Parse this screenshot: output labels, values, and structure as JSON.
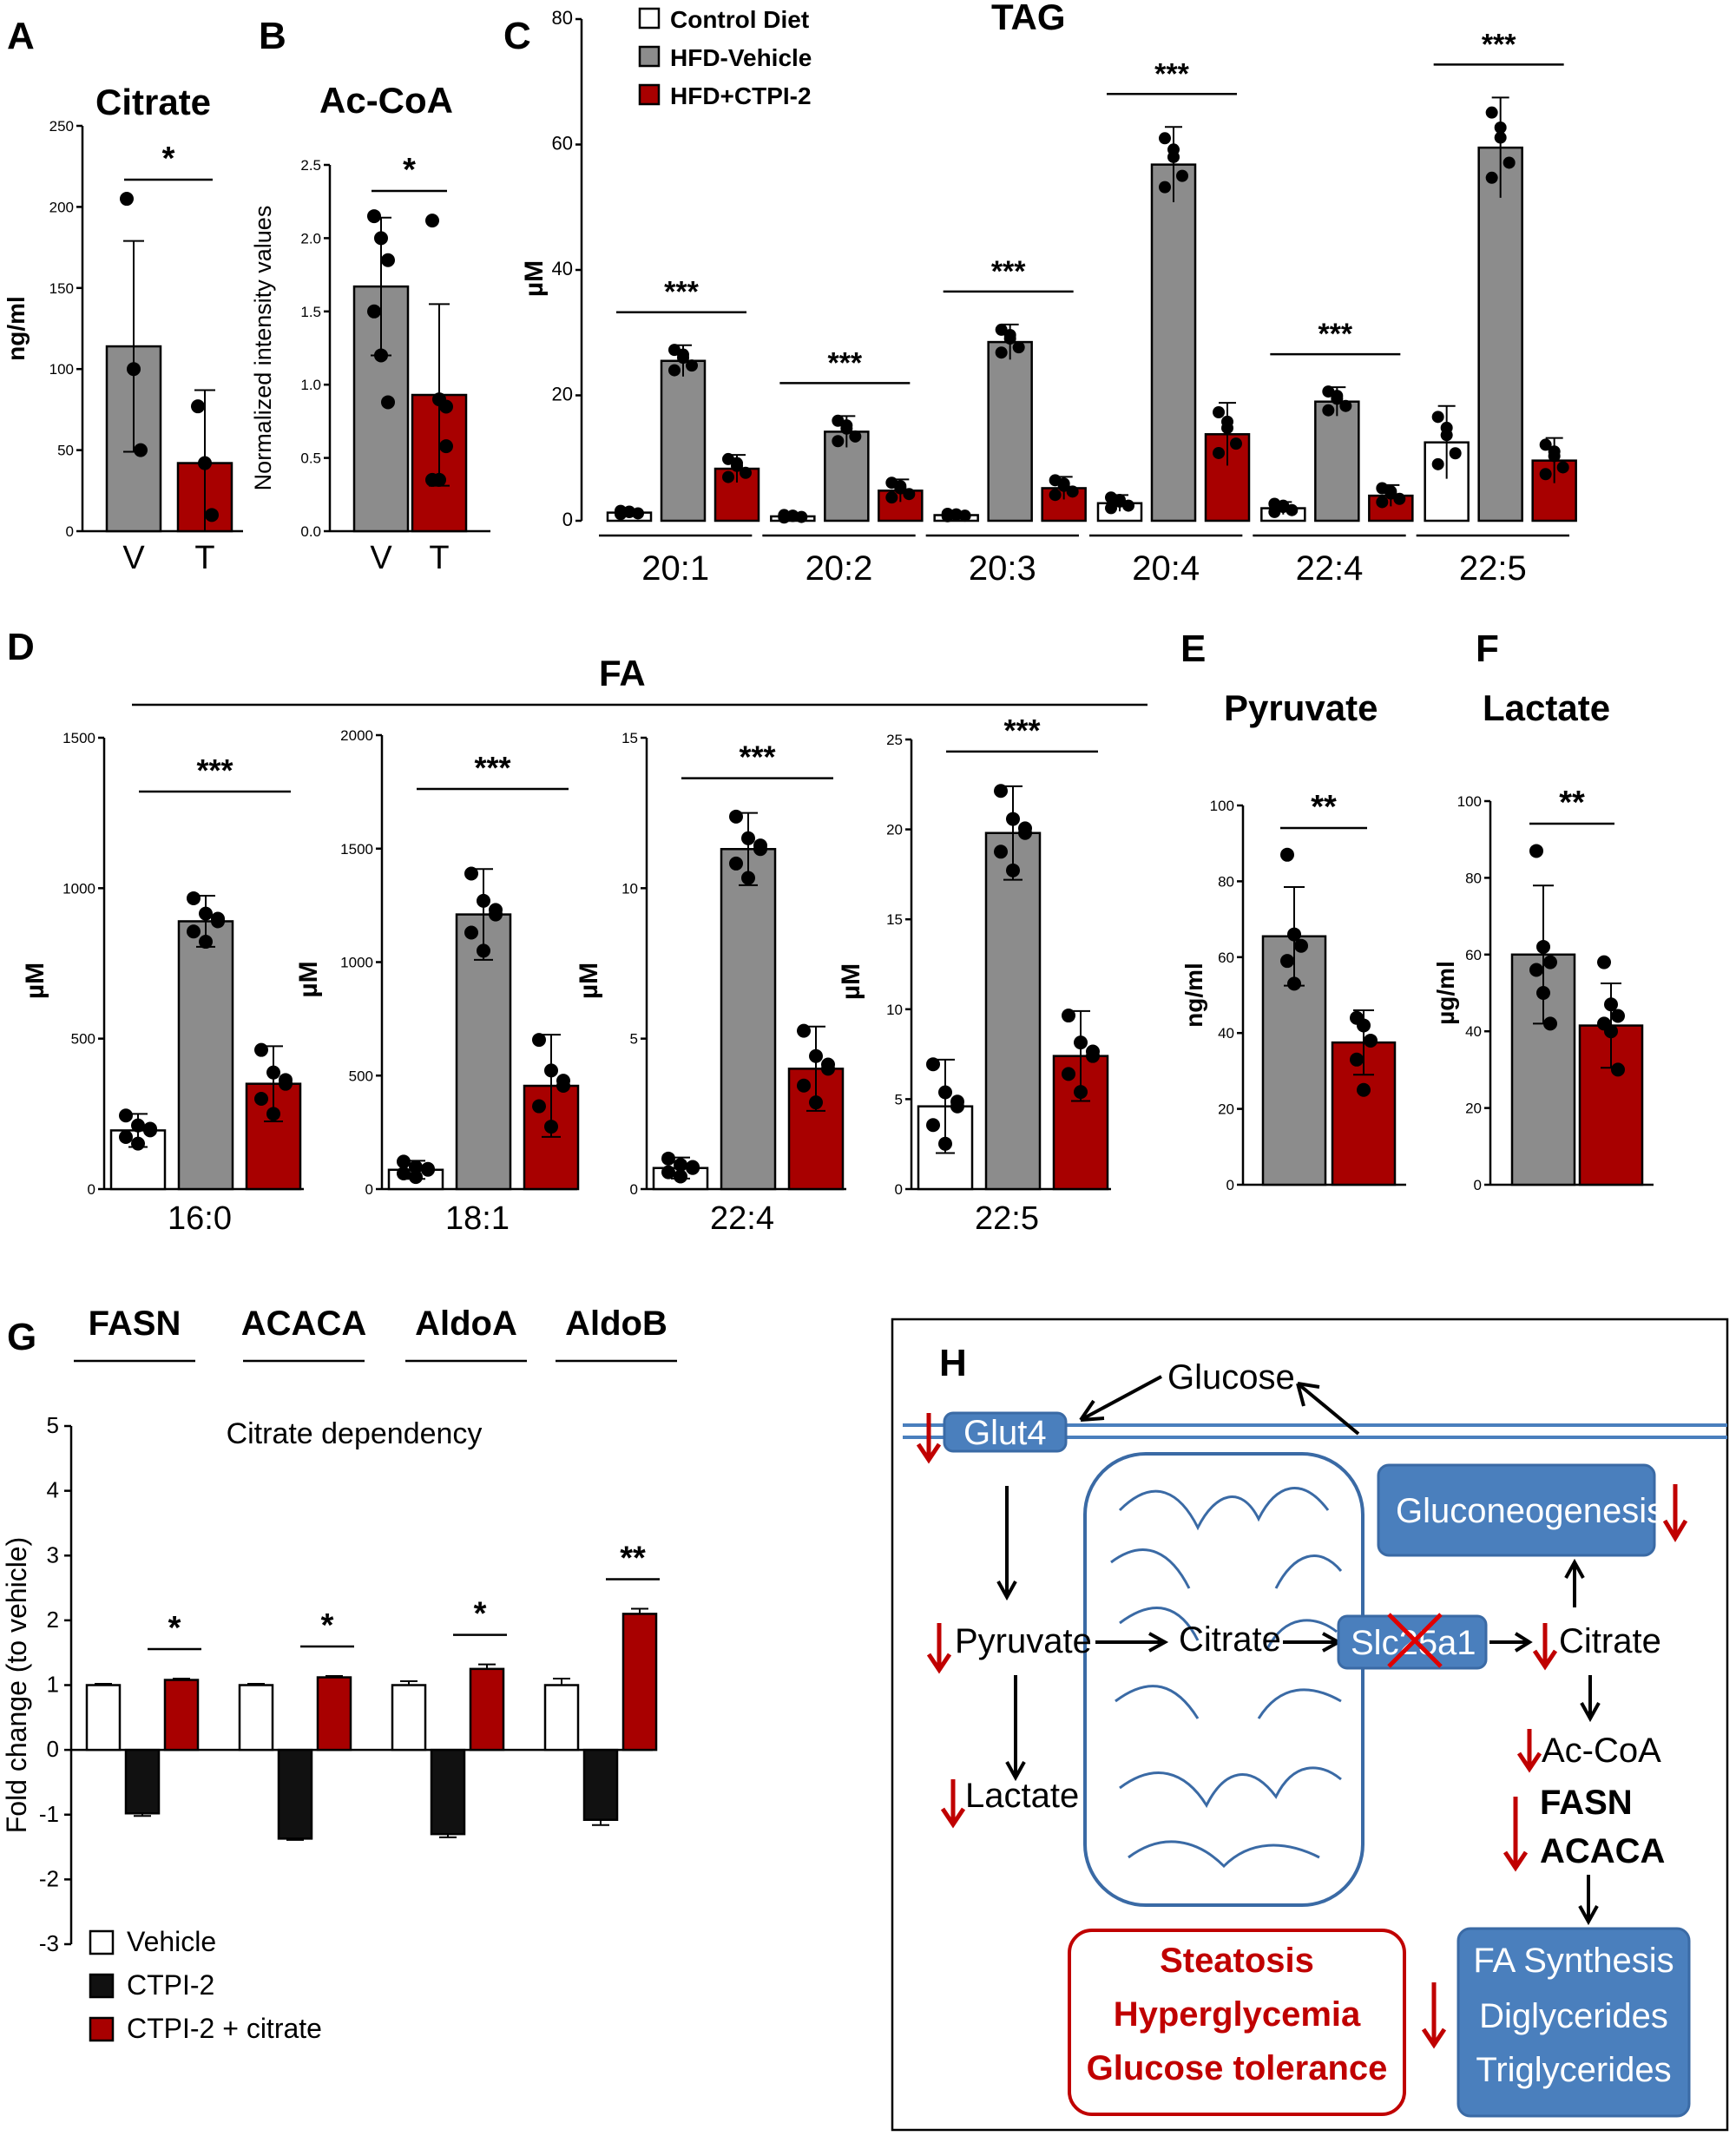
{
  "colors": {
    "control": "#ffffff",
    "vehicle": "#8c8c8c",
    "ctpi": "#a80000",
    "black": "#111111",
    "blue_box": "#4a7fbd",
    "membrane": "#3a6aa5",
    "red": "#c00000"
  },
  "panels": {
    "A": {
      "label": "A",
      "title": "Citrate"
    },
    "B": {
      "label": "B",
      "title": "Ac-CoA"
    },
    "C": {
      "label": "C",
      "title": "TAG"
    },
    "D": {
      "label": "D",
      "title": "FA"
    },
    "E": {
      "label": "E",
      "title": "Pyruvate"
    },
    "F": {
      "label": "F",
      "title": "Lactate"
    },
    "G": {
      "label": "G",
      "title": "Citrate dependency",
      "gene_headers": [
        "FASN",
        "ACACA",
        "AldoA",
        "AldoB"
      ]
    },
    "H": {
      "label": "H"
    }
  },
  "legend_c": [
    "Control Diet",
    "HFD-Vehicle",
    "HFD+CTPI-2"
  ],
  "legend_g": [
    "Vehicle",
    "CTPI-2",
    "CTPI-2 + citrate"
  ],
  "chart_data": [
    {
      "id": "A",
      "type": "bar",
      "title": "Citrate",
      "ylabel": "ng/ml",
      "ylim": [
        0,
        250
      ],
      "yticks": [
        0,
        50,
        100,
        150,
        200,
        250
      ],
      "categories": [
        "V",
        "T"
      ],
      "values": [
        114,
        42
      ],
      "errors": [
        65,
        45
      ],
      "points": [
        [
          205,
          100,
          50
        ],
        [
          77,
          42,
          10
        ]
      ],
      "significance": "*"
    },
    {
      "id": "B",
      "type": "bar",
      "title": "Ac-CoA",
      "ylabel": "Normalized intensity values",
      "ylim": [
        0,
        2.5
      ],
      "yticks": [
        "0.0",
        "0.5",
        "1.0",
        "1.5",
        "2.0",
        "2.5"
      ],
      "categories": [
        "V",
        "T"
      ],
      "values": [
        1.67,
        0.93
      ],
      "errors": [
        0.47,
        0.62
      ],
      "points": [
        [
          2.15,
          2.0,
          1.85,
          1.5,
          1.2,
          0.88
        ],
        [
          2.12,
          0.9,
          0.58,
          0.35,
          0.35,
          0.85
        ]
      ],
      "significance": "*"
    },
    {
      "id": "C",
      "type": "bar",
      "title": "TAG",
      "ylabel": "µM",
      "ylim": [
        0,
        80
      ],
      "yticks": [
        0,
        20,
        40,
        60,
        80
      ],
      "categories": [
        "20:1",
        "20:2",
        "20:3",
        "20:4",
        "22:4",
        "22:5"
      ],
      "series": [
        {
          "name": "Control Diet",
          "values": [
            1.3,
            0.7,
            0.9,
            2.8,
            2.0,
            12.5
          ],
          "errors": [
            0.4,
            0.3,
            0.3,
            1.3,
            1.0,
            5.8
          ]
        },
        {
          "name": "HFD-Vehicle",
          "values": [
            25.5,
            14.2,
            28.5,
            56.8,
            19.0,
            59.5
          ],
          "errors": [
            2.5,
            2.5,
            2.8,
            6.0,
            2.3,
            8.0
          ]
        },
        {
          "name": "HFD+CTPI-2",
          "values": [
            8.3,
            4.8,
            5.2,
            13.8,
            4.0,
            9.6
          ],
          "errors": [
            2.2,
            1.8,
            1.8,
            5.0,
            1.7,
            3.6
          ]
        }
      ],
      "significance": [
        "***",
        "***",
        "***",
        "***",
        "***",
        "***"
      ]
    },
    {
      "id": "D1",
      "type": "bar",
      "ylabel": "µM",
      "ylim": [
        0,
        1500
      ],
      "yticks": [
        0,
        500,
        1000,
        1500
      ],
      "categories": [
        "16:0"
      ],
      "series": [
        {
          "name": "Control Diet",
          "values": [
            195
          ],
          "errors": [
            55
          ]
        },
        {
          "name": "HFD-Vehicle",
          "values": [
            890
          ],
          "errors": [
            85
          ]
        },
        {
          "name": "HFD+CTPI-2",
          "values": [
            350
          ],
          "errors": [
            125
          ]
        }
      ],
      "significance": "***"
    },
    {
      "id": "D2",
      "type": "bar",
      "ylabel": "µM",
      "ylim": [
        0,
        2000
      ],
      "yticks": [
        0,
        500,
        1000,
        1500,
        2000
      ],
      "categories": [
        "18:1"
      ],
      "series": [
        {
          "name": "Control Diet",
          "values": [
            85
          ],
          "errors": [
            40
          ]
        },
        {
          "name": "HFD-Vehicle",
          "values": [
            1210
          ],
          "errors": [
            200
          ]
        },
        {
          "name": "HFD+CTPI-2",
          "values": [
            455
          ],
          "errors": [
            225
          ]
        }
      ],
      "significance": "***"
    },
    {
      "id": "D3",
      "type": "bar",
      "ylabel": "µM",
      "ylim": [
        0,
        15
      ],
      "yticks": [
        0,
        5,
        10,
        15
      ],
      "categories": [
        "22:4"
      ],
      "series": [
        {
          "name": "Control Diet",
          "values": [
            0.7
          ],
          "errors": [
            0.35
          ]
        },
        {
          "name": "HFD-Vehicle",
          "values": [
            11.3
          ],
          "errors": [
            1.2
          ]
        },
        {
          "name": "HFD+CTPI-2",
          "values": [
            4.0
          ],
          "errors": [
            1.4
          ]
        }
      ],
      "significance": "***"
    },
    {
      "id": "D4",
      "type": "bar",
      "ylabel": "µM",
      "ylim": [
        0,
        25
      ],
      "yticks": [
        0,
        5,
        10,
        15,
        20,
        25
      ],
      "categories": [
        "22:5"
      ],
      "series": [
        {
          "name": "Control Diet",
          "values": [
            4.6
          ],
          "errors": [
            2.6
          ]
        },
        {
          "name": "HFD-Vehicle",
          "values": [
            19.8
          ],
          "errors": [
            2.6
          ]
        },
        {
          "name": "HFD+CTPI-2",
          "values": [
            7.4
          ],
          "errors": [
            2.5
          ]
        }
      ],
      "significance": "***"
    },
    {
      "id": "E",
      "type": "bar",
      "title": "Pyruvate",
      "ylabel": "ng/ml",
      "ylim": [
        0,
        100
      ],
      "yticks": [
        0,
        20,
        40,
        60,
        80,
        100
      ],
      "categories": [
        "V",
        "T"
      ],
      "values": [
        65.5,
        37.5
      ],
      "errors": [
        13,
        8.5
      ],
      "points": [
        [
          87,
          66,
          63,
          59,
          53
        ],
        [
          44,
          42,
          38,
          33,
          25
        ]
      ],
      "significance": "**"
    },
    {
      "id": "F",
      "type": "bar",
      "title": "Lactate",
      "ylabel": "µg/ml",
      "ylim": [
        0,
        100
      ],
      "yticks": [
        0,
        20,
        40,
        60,
        80,
        100
      ],
      "categories": [
        "V",
        "T"
      ],
      "values": [
        60,
        41.5
      ],
      "errors": [
        18,
        11
      ],
      "points": [
        [
          87,
          62,
          58,
          56,
          50,
          42
        ],
        [
          58,
          47,
          44,
          42,
          40,
          30
        ]
      ],
      "significance": "**"
    },
    {
      "id": "G",
      "type": "bar",
      "title": "Citrate dependency",
      "ylabel": "Fold change (to vehicle)",
      "ylim": [
        -3,
        5
      ],
      "yticks": [
        -3,
        -2,
        -1,
        0,
        1,
        2,
        3,
        4,
        5
      ],
      "categories": [
        "FASN",
        "ACACA",
        "AldoA",
        "AldoB"
      ],
      "series": [
        {
          "name": "Vehicle",
          "values": [
            1.0,
            1.0,
            1.0,
            1.0
          ],
          "errors": [
            0.02,
            0.02,
            0.06,
            0.1
          ]
        },
        {
          "name": "CTPI-2",
          "values": [
            -0.98,
            -1.37,
            -1.3,
            -1.08
          ],
          "errors": [
            0.04,
            0.02,
            0.05,
            0.08
          ]
        },
        {
          "name": "CTPI-2 + citrate",
          "values": [
            1.08,
            1.12,
            1.25,
            2.1
          ],
          "errors": [
            0.02,
            0.02,
            0.07,
            0.08
          ]
        }
      ],
      "significance": [
        "*",
        "*",
        "*",
        "**"
      ]
    }
  ],
  "diagram": {
    "glucose": "Glucose",
    "glut4": "Glut4",
    "pyruvate": "Pyruvate",
    "lactate": "Lactate",
    "citrate_in": "Citrate",
    "slc": "Slc25a1",
    "citrate_out": "Citrate",
    "gluconeogenesis": "Gluconeogenesis",
    "accoa": "Ac-CoA",
    "fasn": "FASN",
    "acaca": "ACACA",
    "outcomes": [
      "Steatosis",
      "Hyperglycemia",
      "Glucose tolerance"
    ],
    "synthesis": [
      "FA Synthesis",
      "Diglycerides",
      "Triglycerides"
    ]
  }
}
